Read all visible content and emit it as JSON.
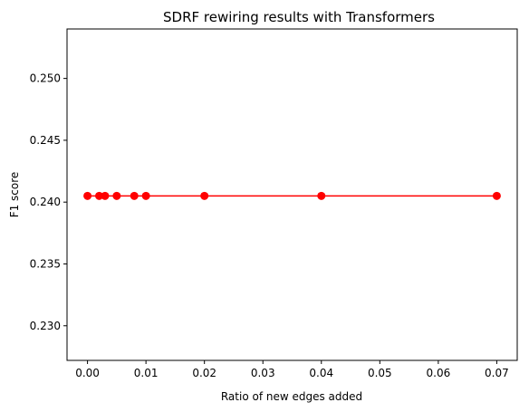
{
  "chart_data": {
    "type": "line",
    "title": "SDRF rewiring results with Transformers",
    "xlabel": "Ratio of new edges added",
    "ylabel": "F1 score",
    "xlim": [
      -0.0035,
      0.0735
    ],
    "ylim": [
      0.2272,
      0.254
    ],
    "xticks": [
      0.0,
      0.01,
      0.02,
      0.03,
      0.04,
      0.05,
      0.06,
      0.07
    ],
    "xtick_labels": [
      "0.00",
      "0.01",
      "0.02",
      "0.03",
      "0.04",
      "0.05",
      "0.06",
      "0.07"
    ],
    "yticks": [
      0.23,
      0.235,
      0.24,
      0.245,
      0.25
    ],
    "ytick_labels": [
      "0.230",
      "0.235",
      "0.240",
      "0.245",
      "0.250"
    ],
    "grid": false,
    "series": [
      {
        "color": "#ff0000",
        "marker": "circle",
        "x": [
          0.0,
          0.002,
          0.003,
          0.005,
          0.008,
          0.01,
          0.02,
          0.04,
          0.07
        ],
        "y": [
          0.2405,
          0.2405,
          0.2405,
          0.2405,
          0.2405,
          0.2405,
          0.2405,
          0.2405,
          0.2405
        ]
      }
    ]
  }
}
